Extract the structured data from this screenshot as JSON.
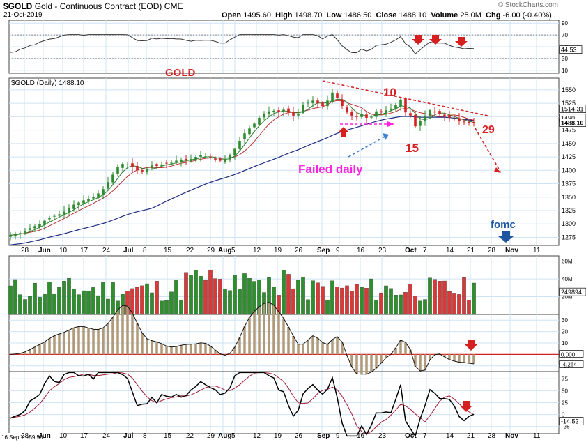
{
  "header": {
    "symbol": "$GOLD",
    "name": "Gold - Continuous Contract (EOD)",
    "exchange": "CME",
    "date": "21-Oct-2019",
    "watermark": "© StockCharts.com",
    "open_label": "Open",
    "open": "1495.60",
    "high_label": "High",
    "high": "1498.70",
    "low_label": "Low",
    "low": "1486.50",
    "close_label": "Close",
    "close": "1488.10",
    "volume_label": "Volume",
    "volume": "25.0M",
    "chg_label": "Chg",
    "chg": "-6.00 (-0.40%)"
  },
  "chart_data": {
    "type": "candlestick",
    "title": "$GOLD (Daily) 1488.10",
    "annotation_title": "GOLD",
    "x_axis_labels": [
      "28",
      "Jun",
      "10",
      "17",
      "24",
      "Jul",
      "8",
      "15",
      "22",
      "29",
      "Aug",
      "5",
      "12",
      "19",
      "26",
      "Sep",
      "9",
      "16",
      "23",
      "Oct",
      "7",
      "14",
      "21",
      "28",
      "Nov",
      "11"
    ],
    "price_axis": {
      "ticks": [
        1275,
        1300,
        1325,
        1350,
        1375,
        1400,
        1425,
        1450,
        1475,
        1500,
        1525,
        1550
      ],
      "range": [
        1260,
        1572
      ]
    },
    "price_tags": {
      "ma_long": "1514.31",
      "ma_red": "1490",
      "close": "1488.10"
    },
    "price_series": [
      1279,
      1281,
      1283,
      1287,
      1292,
      1296,
      1300,
      1306,
      1312,
      1315,
      1318,
      1323,
      1330,
      1336,
      1340,
      1344,
      1346,
      1350,
      1357,
      1365,
      1378,
      1392,
      1406,
      1412,
      1411,
      1406,
      1400,
      1398,
      1403,
      1409,
      1408,
      1411,
      1413,
      1414,
      1418,
      1420,
      1419,
      1421,
      1425,
      1428,
      1426,
      1423,
      1420,
      1418,
      1421,
      1428,
      1440,
      1455,
      1469,
      1478,
      1487,
      1498,
      1505,
      1510,
      1511,
      1509,
      1513,
      1508,
      1502,
      1505,
      1522,
      1526,
      1530,
      1525,
      1520,
      1530,
      1545,
      1535,
      1520,
      1508,
      1502,
      1500,
      1505,
      1498,
      1500,
      1510,
      1508,
      1512,
      1515,
      1522,
      1532,
      1508,
      1502,
      1482,
      1492,
      1502,
      1512,
      1508,
      1505,
      1502,
      1498,
      1496,
      1492,
      1490,
      1488,
      1488
    ],
    "annotations": [
      "10",
      "15",
      "29",
      "Failed daily",
      "fomc"
    ],
    "rsi_panel": {
      "ticks": [
        "90",
        "70",
        "50",
        "30",
        "10"
      ],
      "last": "44.53"
    },
    "volume_panel": {
      "ticks": [
        "60M",
        "40M",
        "20M"
      ],
      "last": "249894"
    },
    "macd_panel": {
      "ticks": [
        "30",
        "20",
        "10",
        "0",
        "-10"
      ],
      "last_a": "0.000",
      "last_b": "-4.264"
    },
    "stoch_panel": {
      "ticks": [
        "75",
        "50",
        "25",
        "0",
        "-25"
      ],
      "last": "-14.52",
      "note": "16 Sep Y: -59.50"
    }
  },
  "colors": {
    "up": "#2e8b2e",
    "down": "#d62020",
    "annotation": "#d62020",
    "magenta": "#ff22dd",
    "blue": "#1f56a0",
    "ma_blue": "#1c2a80",
    "grid": "#cfe3f5"
  }
}
